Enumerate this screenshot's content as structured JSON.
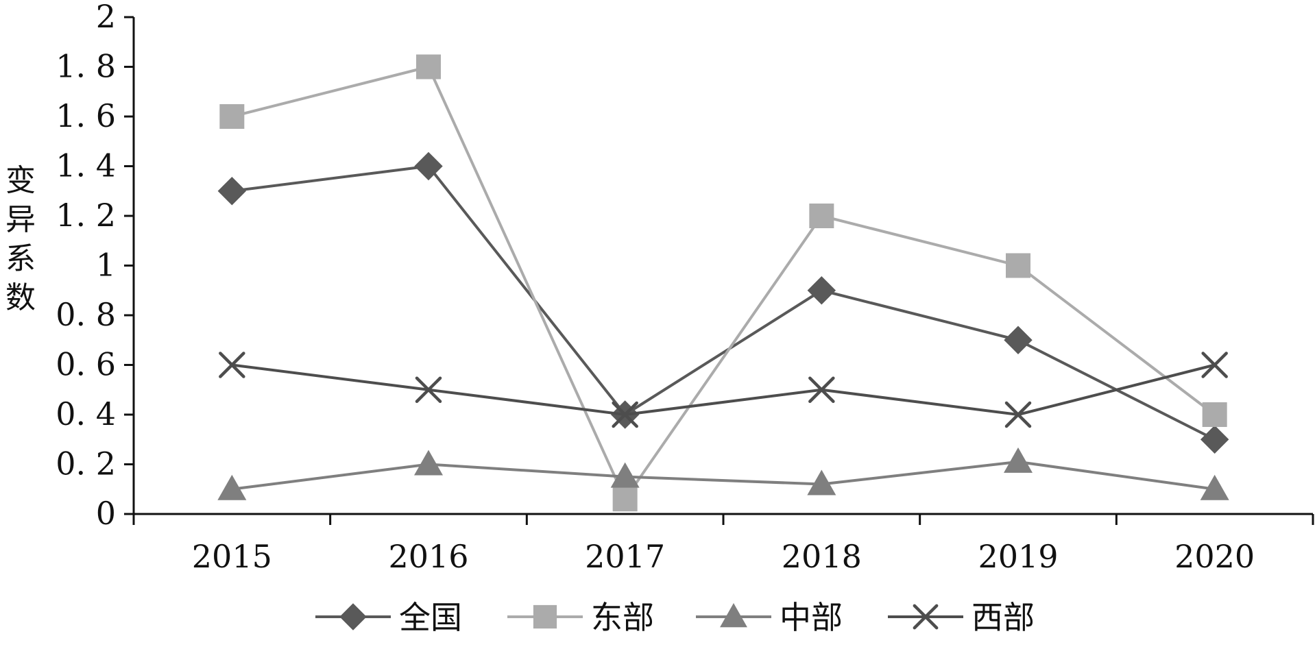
{
  "chart_data": {
    "type": "line",
    "title": "",
    "xlabel": "",
    "ylabel": "变异系数",
    "categories": [
      "2015",
      "2016",
      "2017",
      "2018",
      "2019",
      "2020"
    ],
    "ylim": [
      0,
      2
    ],
    "y_ticks": [
      {
        "value": 0,
        "label": "0"
      },
      {
        "value": 0.2,
        "label": "0. 2"
      },
      {
        "value": 0.4,
        "label": "0. 4"
      },
      {
        "value": 0.6,
        "label": "0. 6"
      },
      {
        "value": 0.8,
        "label": "0. 8"
      },
      {
        "value": 1,
        "label": "1"
      },
      {
        "value": 1.2,
        "label": "1. 2"
      },
      {
        "value": 1.4,
        "label": "1. 4"
      },
      {
        "value": 1.6,
        "label": "1. 6"
      },
      {
        "value": 1.8,
        "label": "1. 8"
      },
      {
        "value": 2,
        "label": "2"
      }
    ],
    "grid": false,
    "legend_position": "bottom",
    "series": [
      {
        "name": "全国",
        "marker": "diamond",
        "color": "#595959",
        "values": [
          1.3,
          1.4,
          0.4,
          0.9,
          0.7,
          0.3
        ]
      },
      {
        "name": "东部",
        "marker": "square",
        "color": "#ababab",
        "values": [
          1.6,
          1.8,
          0.06,
          1.2,
          1.0,
          0.4
        ]
      },
      {
        "name": "中部",
        "marker": "triangle",
        "color": "#7f7f7f",
        "values": [
          0.1,
          0.2,
          0.15,
          0.12,
          0.21,
          0.1
        ]
      },
      {
        "name": "西部",
        "marker": "x",
        "color": "#4d4d4d",
        "values": [
          0.6,
          0.5,
          0.4,
          0.5,
          0.4,
          0.6
        ]
      }
    ]
  }
}
